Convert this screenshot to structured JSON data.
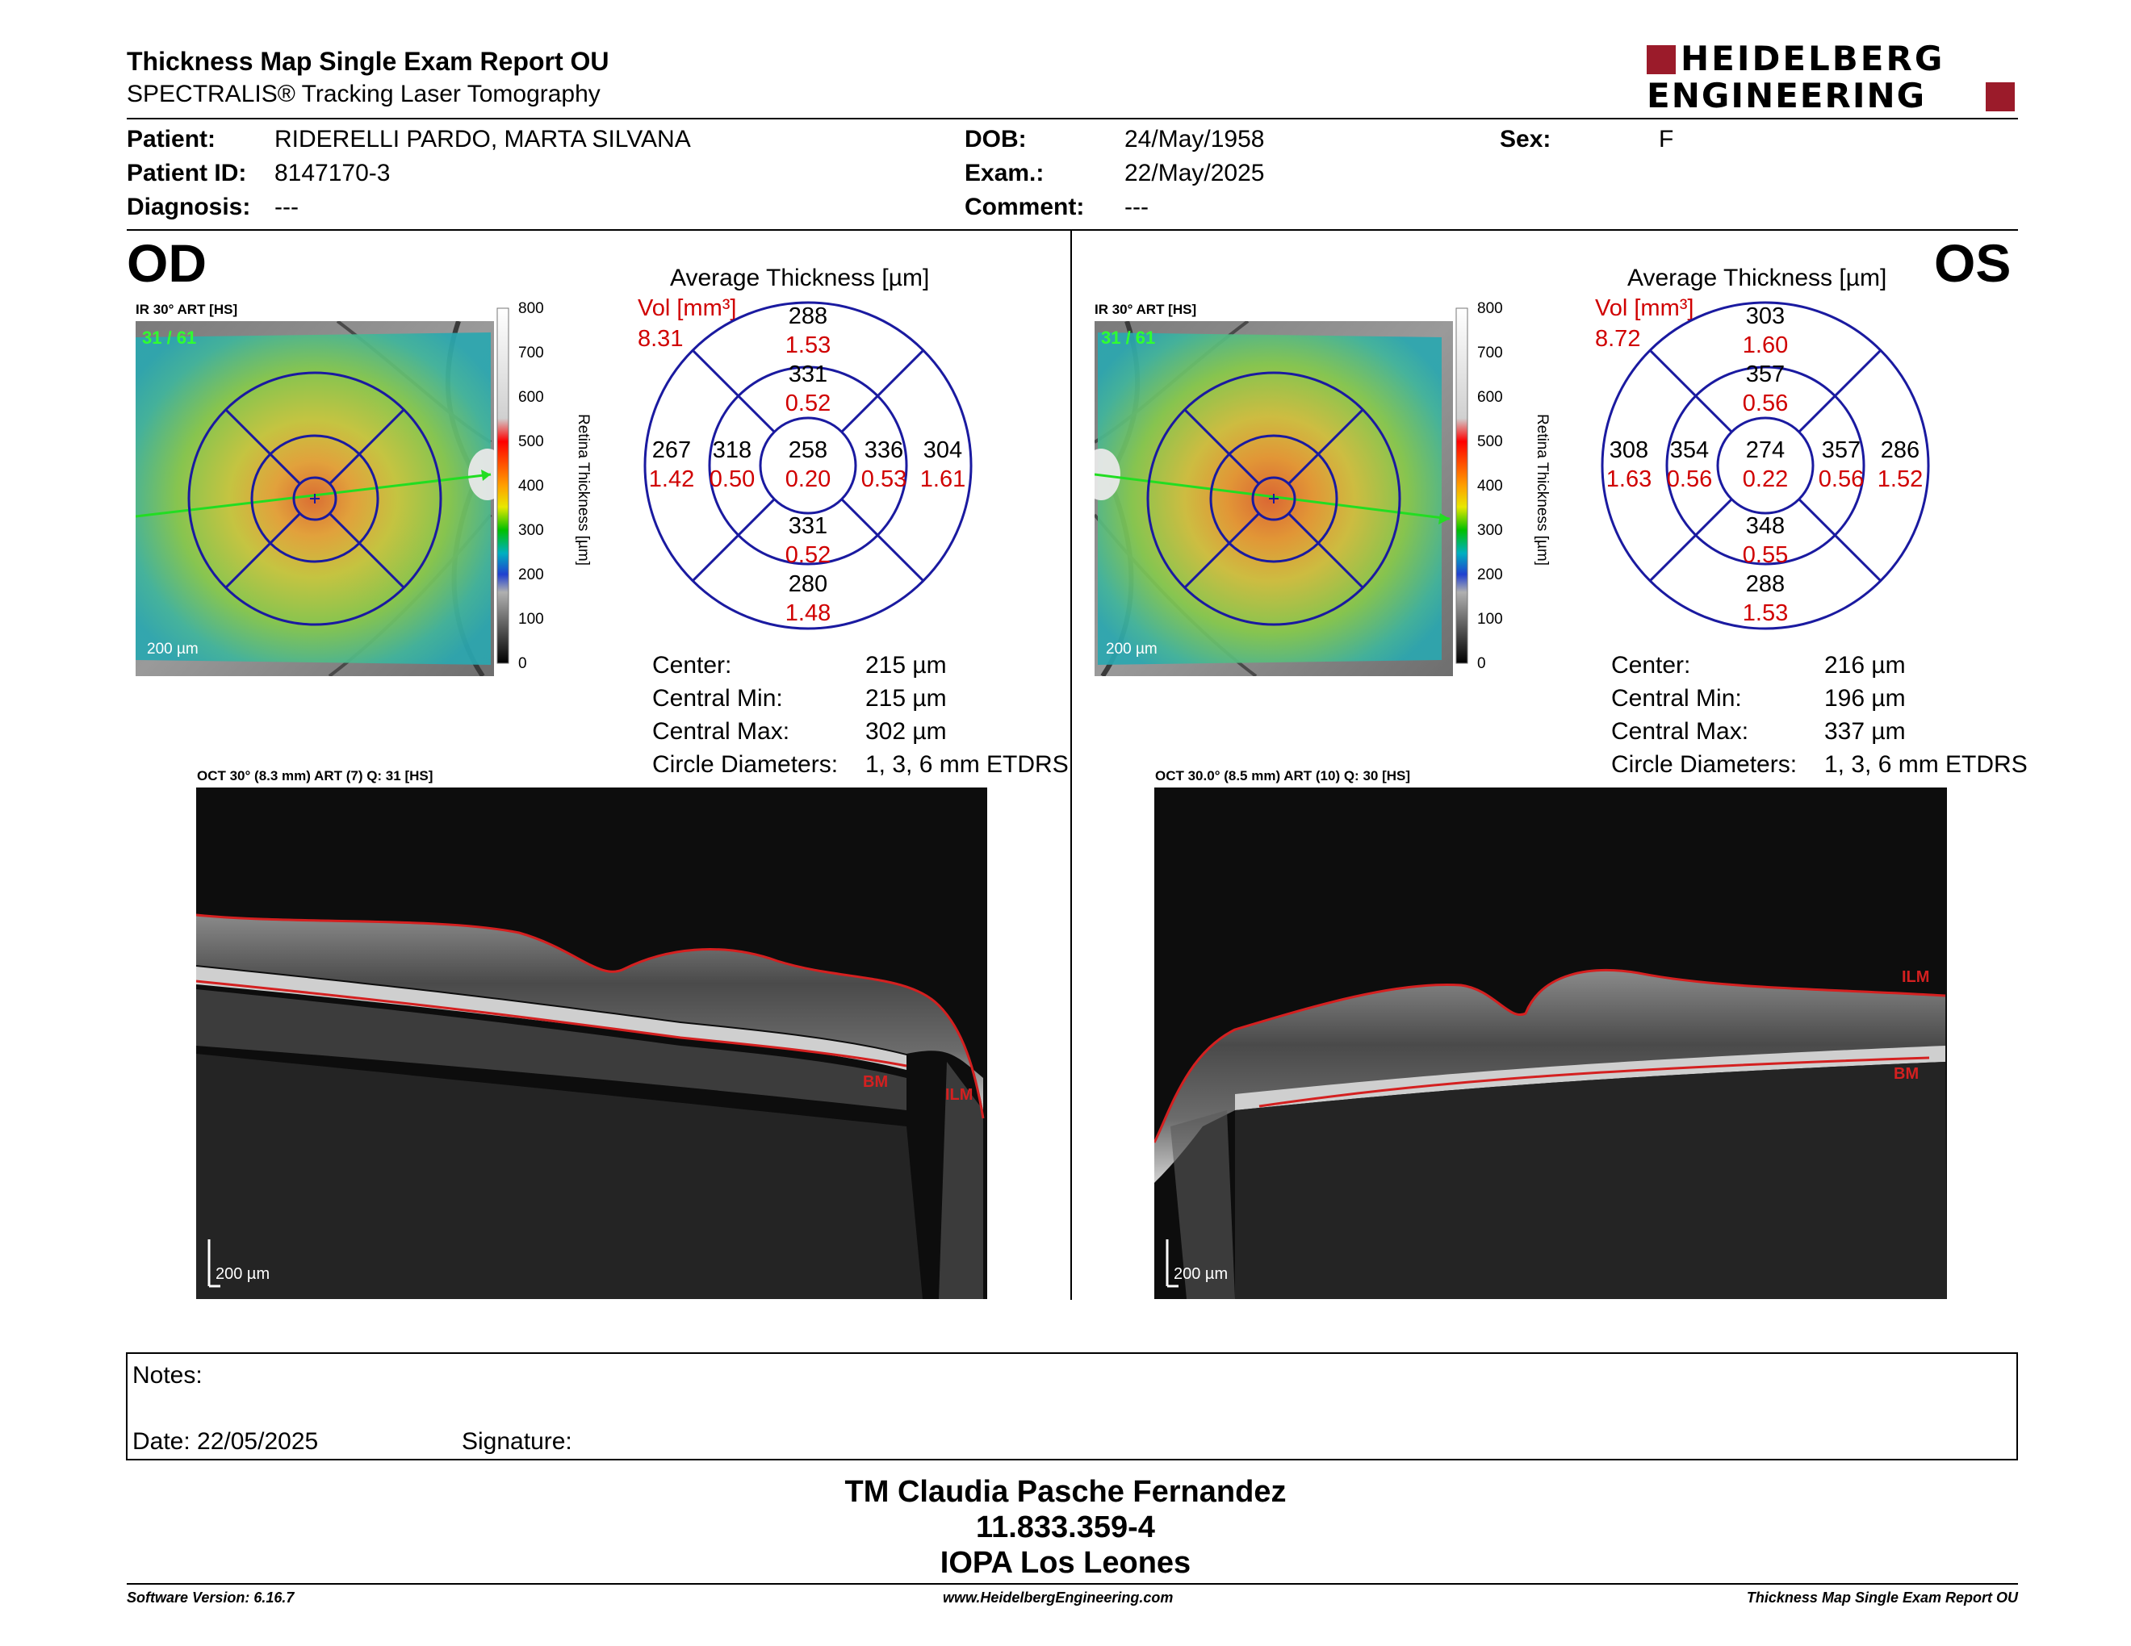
{
  "header": {
    "title": "Thickness Map Single Exam Report OU",
    "subtitle": "SPECTRALIS® Tracking Laser Tomography",
    "logo_line1": "HEIDELBERG",
    "logo_line2": "ENGINEERING",
    "logo_color": "#9b1b2a"
  },
  "patient": {
    "patient_label": "Patient:",
    "patient_value": "RIDERELLI PARDO, MARTA SILVANA",
    "id_label": "Patient ID:",
    "id_value": "8147170-3",
    "diagnosis_label": "Diagnosis:",
    "diagnosis_value": "---",
    "dob_label": "DOB:",
    "dob_value": "24/May/1958",
    "exam_label": "Exam.:",
    "exam_value": "22/May/2025",
    "comment_label": "Comment:",
    "comment_value": "---",
    "sex_label": "Sex:",
    "sex_value": "F"
  },
  "od": {
    "eye_label": "OD",
    "ir_label": "IR 30° ART [HS]",
    "art_count": "31 / 61",
    "scale_label": "200 µm",
    "colorbar_ticks": [
      "800",
      "700",
      "600",
      "500",
      "400",
      "300",
      "200",
      "100",
      "0"
    ],
    "colorbar_title": "Retina Thickness [µm]",
    "avg_title": "Average Thickness [µm]",
    "vol_label": "Vol [mm³]",
    "vol_value": "8.31",
    "sectors": {
      "outer_sup": "288",
      "outer_sup_vol": "1.53",
      "inner_sup": "331",
      "inner_sup_vol": "0.52",
      "outer_left": "267",
      "outer_left_vol": "1.42",
      "inner_left": "318",
      "inner_left_vol": "0.50",
      "center": "258",
      "center_vol": "0.20",
      "inner_right": "336",
      "inner_right_vol": "0.53",
      "outer_right": "304",
      "outer_right_vol": "1.61",
      "inner_inf": "331",
      "inner_inf_vol": "0.52",
      "outer_inf": "280",
      "outer_inf_vol": "1.48"
    },
    "stats": {
      "center_label": "Center:",
      "center_value": "215 µm",
      "min_label": "Central Min:",
      "min_value": "215 µm",
      "max_label": "Central Max:",
      "max_value": "302 µm",
      "diam_label": "Circle Diameters:",
      "diam_value": "1, 3, 6 mm ETDRS"
    },
    "oct_label": "OCT 30° (8.3 mm) ART (7) Q: 31 [HS]",
    "oct_scale": "200 µm",
    "ilm_label": "ILM",
    "bm_label": "BM"
  },
  "os": {
    "eye_label": "OS",
    "ir_label": "IR 30° ART [HS]",
    "art_count": "31 / 61",
    "scale_label": "200 µm",
    "colorbar_ticks": [
      "800",
      "700",
      "600",
      "500",
      "400",
      "300",
      "200",
      "100",
      "0"
    ],
    "colorbar_title": "Retina Thickness [µm]",
    "avg_title": "Average Thickness [µm]",
    "vol_label": "Vol [mm³]",
    "vol_value": "8.72",
    "sectors": {
      "outer_sup": "303",
      "outer_sup_vol": "1.60",
      "inner_sup": "357",
      "inner_sup_vol": "0.56",
      "outer_left": "308",
      "outer_left_vol": "1.63",
      "inner_left": "354",
      "inner_left_vol": "0.56",
      "center": "274",
      "center_vol": "0.22",
      "inner_right": "357",
      "inner_right_vol": "0.56",
      "outer_right": "286",
      "outer_right_vol": "1.52",
      "inner_inf": "348",
      "inner_inf_vol": "0.55",
      "outer_inf": "288",
      "outer_inf_vol": "1.53"
    },
    "stats": {
      "center_label": "Center:",
      "center_value": "216 µm",
      "min_label": "Central Min:",
      "min_value": "196 µm",
      "max_label": "Central Max:",
      "max_value": "337 µm",
      "diam_label": "Circle Diameters:",
      "diam_value": "1, 3, 6 mm ETDRS"
    },
    "oct_label": "OCT 30.0° (8.5 mm) ART (10) Q: 30 [HS]",
    "oct_scale": "200 µm",
    "ilm_label": "ILM",
    "bm_label": "BM"
  },
  "notes": {
    "notes_label": "Notes:",
    "date_label": "Date: 22/05/2025",
    "signature_label": "Signature:"
  },
  "signature": {
    "name": "TM Claudia Pasche Fernandez",
    "rut": "11.833.359-4",
    "org": "IOPA Los Leones"
  },
  "footer": {
    "software": "Software Version: 6.16.7",
    "website": "www.HeidelbergEngineering.com",
    "report": "Thickness Map Single Exam Report OU"
  }
}
